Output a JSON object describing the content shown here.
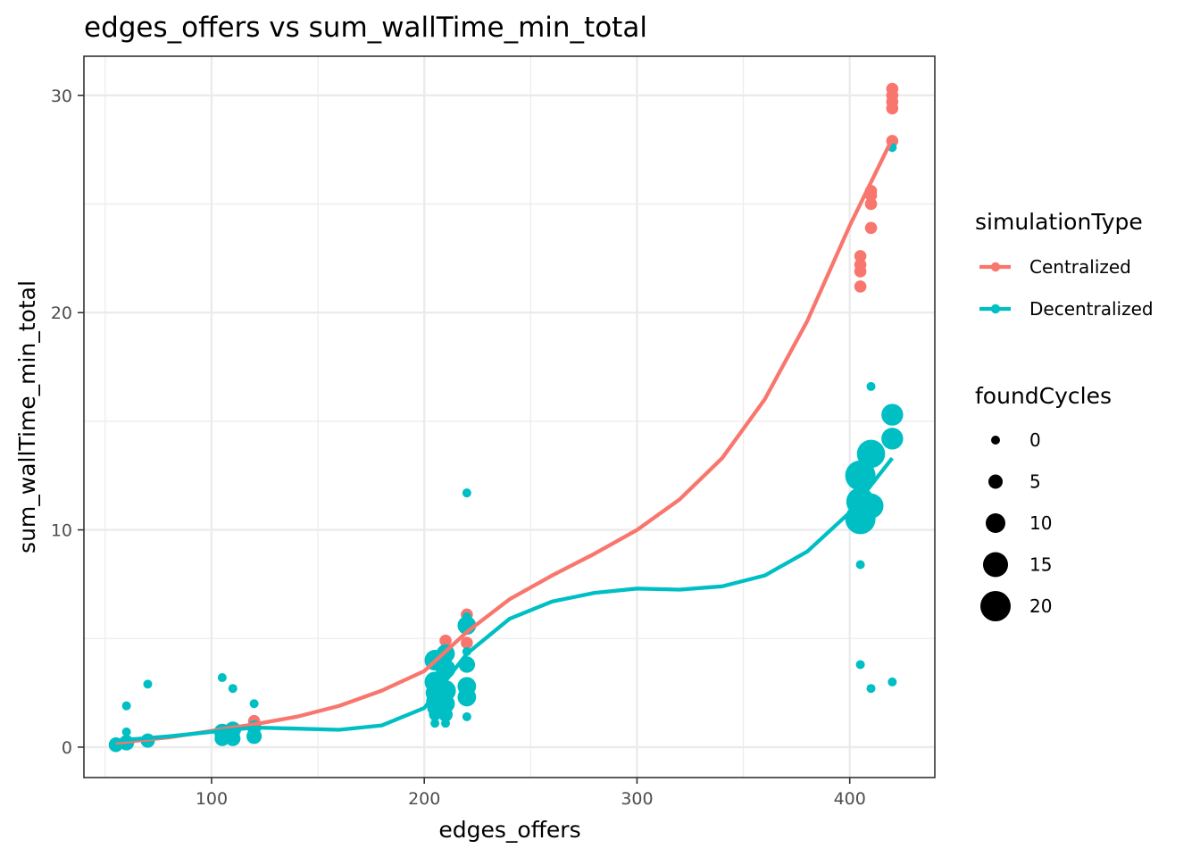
{
  "chart_data": {
    "type": "scatter",
    "title": "edges_offers  vs  sum_wallTime_min_total",
    "xlabel": "edges_offers",
    "ylabel": "sum_wallTime_min_total",
    "xlim": [
      40,
      440
    ],
    "ylim": [
      -1.4,
      31.8
    ],
    "x_ticks": [
      100,
      200,
      300,
      400
    ],
    "y_ticks": [
      0,
      10,
      20,
      30
    ],
    "grid": true,
    "legend_position": "right",
    "colors": {
      "Centralized": "#F8766D",
      "Decentralized": "#00BFC4"
    },
    "color_legend": {
      "title": "simulationType",
      "entries": [
        "Centralized",
        "Decentralized"
      ]
    },
    "size_legend": {
      "title": "foundCycles",
      "values": [
        0,
        5,
        10,
        15,
        20
      ]
    },
    "series": [
      {
        "name": "Centralized",
        "points": [
          {
            "x": 55,
            "y": 0.15,
            "size": 3
          },
          {
            "x": 60,
            "y": 0.2,
            "size": 3
          },
          {
            "x": 70,
            "y": 0.3,
            "size": 3
          },
          {
            "x": 105,
            "y": 0.6,
            "size": 3
          },
          {
            "x": 110,
            "y": 0.7,
            "size": 3
          },
          {
            "x": 110,
            "y": 0.85,
            "size": 3
          },
          {
            "x": 120,
            "y": 1.0,
            "size": 3
          },
          {
            "x": 120,
            "y": 1.2,
            "size": 3
          },
          {
            "x": 205,
            "y": 3.9,
            "size": 3
          },
          {
            "x": 205,
            "y": 4.2,
            "size": 3
          },
          {
            "x": 210,
            "y": 4.5,
            "size": 3
          },
          {
            "x": 210,
            "y": 4.9,
            "size": 3
          },
          {
            "x": 220,
            "y": 4.8,
            "size": 3
          },
          {
            "x": 220,
            "y": 5.6,
            "size": 3
          },
          {
            "x": 220,
            "y": 6.1,
            "size": 3
          },
          {
            "x": 405,
            "y": 21.2,
            "size": 3
          },
          {
            "x": 405,
            "y": 21.9,
            "size": 3
          },
          {
            "x": 405,
            "y": 22.2,
            "size": 3
          },
          {
            "x": 405,
            "y": 22.6,
            "size": 3
          },
          {
            "x": 410,
            "y": 23.9,
            "size": 3
          },
          {
            "x": 410,
            "y": 25.0,
            "size": 3
          },
          {
            "x": 410,
            "y": 25.4,
            "size": 3
          },
          {
            "x": 410,
            "y": 25.6,
            "size": 3
          },
          {
            "x": 420,
            "y": 27.9,
            "size": 3
          },
          {
            "x": 420,
            "y": 29.4,
            "size": 3
          },
          {
            "x": 420,
            "y": 29.7,
            "size": 3
          },
          {
            "x": 420,
            "y": 30.0,
            "size": 3
          },
          {
            "x": 420,
            "y": 30.3,
            "size": 3
          }
        ],
        "smooth": [
          [
            55,
            0.2
          ],
          [
            80,
            0.45
          ],
          [
            100,
            0.75
          ],
          [
            120,
            1.05
          ],
          [
            140,
            1.4
          ],
          [
            160,
            1.9
          ],
          [
            180,
            2.6
          ],
          [
            200,
            3.5
          ],
          [
            220,
            5.3
          ],
          [
            240,
            6.8
          ],
          [
            260,
            7.9
          ],
          [
            280,
            8.9
          ],
          [
            300,
            10.0
          ],
          [
            320,
            11.4
          ],
          [
            340,
            13.3
          ],
          [
            360,
            16.0
          ],
          [
            380,
            19.6
          ],
          [
            400,
            24.0
          ],
          [
            420,
            28.0
          ]
        ]
      },
      {
        "name": "Decentralized",
        "points": [
          {
            "x": 55,
            "y": 0.1,
            "size": 5
          },
          {
            "x": 55,
            "y": 0.15,
            "size": 4
          },
          {
            "x": 60,
            "y": 0.2,
            "size": 6
          },
          {
            "x": 60,
            "y": 0.7,
            "size": 0
          },
          {
            "x": 60,
            "y": 1.9,
            "size": 0
          },
          {
            "x": 70,
            "y": 0.3,
            "size": 5
          },
          {
            "x": 70,
            "y": 2.9,
            "size": 0
          },
          {
            "x": 105,
            "y": 0.4,
            "size": 6
          },
          {
            "x": 105,
            "y": 0.7,
            "size": 7
          },
          {
            "x": 105,
            "y": 3.2,
            "size": 0
          },
          {
            "x": 110,
            "y": 0.4,
            "size": 6
          },
          {
            "x": 110,
            "y": 0.8,
            "size": 7
          },
          {
            "x": 110,
            "y": 2.7,
            "size": 0
          },
          {
            "x": 120,
            "y": 0.5,
            "size": 6
          },
          {
            "x": 120,
            "y": 0.9,
            "size": 5
          },
          {
            "x": 120,
            "y": 2.0,
            "size": 0
          },
          {
            "x": 205,
            "y": 1.1,
            "size": 0
          },
          {
            "x": 205,
            "y": 1.5,
            "size": 3
          },
          {
            "x": 205,
            "y": 1.8,
            "size": 6
          },
          {
            "x": 205,
            "y": 2.1,
            "size": 8
          },
          {
            "x": 205,
            "y": 2.5,
            "size": 9
          },
          {
            "x": 205,
            "y": 3.0,
            "size": 11
          },
          {
            "x": 205,
            "y": 4.0,
            "size": 11
          },
          {
            "x": 210,
            "y": 1.1,
            "size": 0
          },
          {
            "x": 210,
            "y": 1.5,
            "size": 5
          },
          {
            "x": 210,
            "y": 2.0,
            "size": 9
          },
          {
            "x": 210,
            "y": 2.6,
            "size": 11
          },
          {
            "x": 210,
            "y": 3.6,
            "size": 10
          },
          {
            "x": 210,
            "y": 4.3,
            "size": 9
          },
          {
            "x": 220,
            "y": 1.4,
            "size": 0
          },
          {
            "x": 220,
            "y": 2.3,
            "size": 9
          },
          {
            "x": 220,
            "y": 2.8,
            "size": 9
          },
          {
            "x": 220,
            "y": 3.8,
            "size": 7
          },
          {
            "x": 220,
            "y": 4.4,
            "size": 0
          },
          {
            "x": 220,
            "y": 5.6,
            "size": 9
          },
          {
            "x": 220,
            "y": 6.0,
            "size": 0
          },
          {
            "x": 220,
            "y": 11.7,
            "size": 0
          },
          {
            "x": 405,
            "y": 3.8,
            "size": 0
          },
          {
            "x": 405,
            "y": 8.4,
            "size": 0
          },
          {
            "x": 405,
            "y": 10.5,
            "size": 20
          },
          {
            "x": 405,
            "y": 11.3,
            "size": 18
          },
          {
            "x": 405,
            "y": 12.5,
            "size": 20
          },
          {
            "x": 410,
            "y": 2.7,
            "size": 0
          },
          {
            "x": 410,
            "y": 11.1,
            "size": 15
          },
          {
            "x": 410,
            "y": 13.5,
            "size": 18
          },
          {
            "x": 410,
            "y": 16.6,
            "size": 0
          },
          {
            "x": 420,
            "y": 3.0,
            "size": 0
          },
          {
            "x": 420,
            "y": 14.2,
            "size": 12
          },
          {
            "x": 420,
            "y": 15.3,
            "size": 12
          },
          {
            "x": 420,
            "y": 27.6,
            "size": 0
          }
        ],
        "smooth": [
          [
            55,
            0.3
          ],
          [
            80,
            0.5
          ],
          [
            100,
            0.7
          ],
          [
            120,
            0.9
          ],
          [
            140,
            0.85
          ],
          [
            160,
            0.8
          ],
          [
            180,
            1.0
          ],
          [
            200,
            1.8
          ],
          [
            220,
            4.3
          ],
          [
            240,
            5.9
          ],
          [
            260,
            6.7
          ],
          [
            280,
            7.1
          ],
          [
            300,
            7.3
          ],
          [
            320,
            7.25
          ],
          [
            340,
            7.4
          ],
          [
            360,
            7.9
          ],
          [
            380,
            9.0
          ],
          [
            400,
            10.8
          ],
          [
            420,
            13.3
          ]
        ]
      }
    ]
  }
}
